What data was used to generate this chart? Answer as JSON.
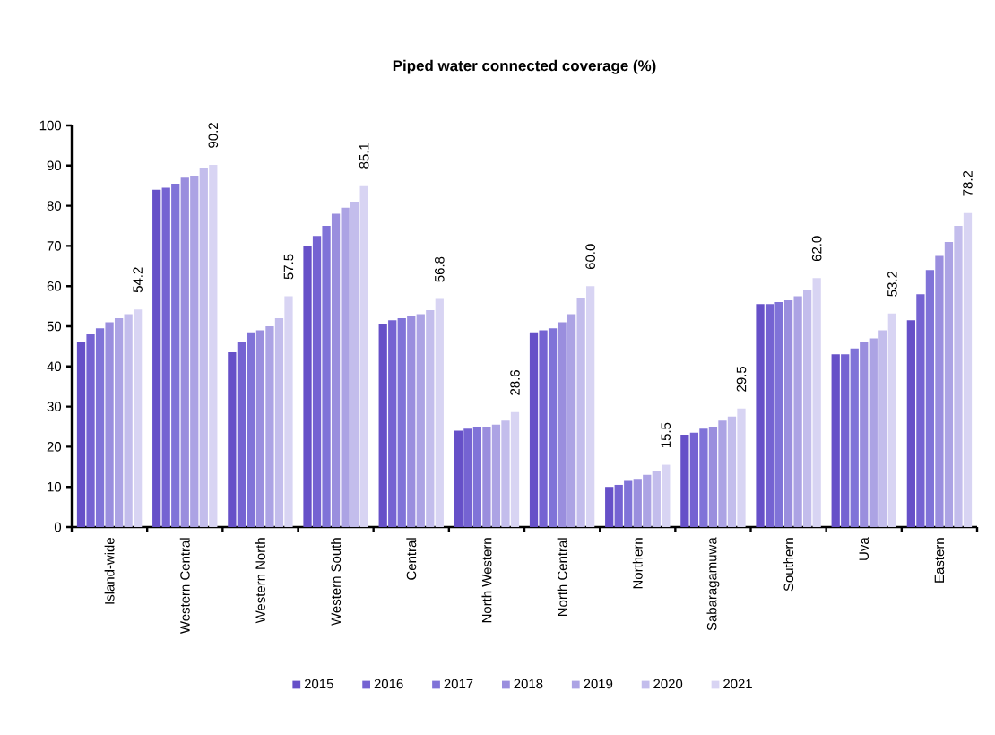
{
  "chart_data": {
    "type": "bar",
    "title": "Piped water connected coverage (%)",
    "categories": [
      "Island-wide",
      "Western Central",
      "Western  North",
      "Western  South",
      "Central",
      "North Western",
      "North Central",
      "Northern",
      "Sabaragamuwa",
      "Southern",
      "Uva",
      "Eastern"
    ],
    "series": [
      {
        "name": "2015",
        "color": "#6650c8",
        "values": [
          46,
          84,
          43.5,
          70,
          50.5,
          24,
          48.5,
          10,
          23,
          55.5,
          43,
          51.5
        ]
      },
      {
        "name": "2016",
        "color": "#7563d2",
        "values": [
          48,
          84.5,
          46,
          72.5,
          51.5,
          24.5,
          49,
          10.5,
          23.5,
          55.5,
          43,
          58
        ]
      },
      {
        "name": "2017",
        "color": "#8073d8",
        "values": [
          49.5,
          85.5,
          48.5,
          75,
          52,
          25,
          49.5,
          11.5,
          24.5,
          56,
          44.5,
          64
        ]
      },
      {
        "name": "2018",
        "color": "#9a8ede",
        "values": [
          51,
          87,
          49,
          78,
          52.5,
          25,
          51,
          12,
          25,
          56.5,
          46,
          67.5
        ]
      },
      {
        "name": "2019",
        "color": "#aca3e4",
        "values": [
          52,
          87.5,
          50,
          79.5,
          53,
          25.5,
          53,
          13,
          26.5,
          57.5,
          47,
          71
        ]
      },
      {
        "name": "2020",
        "color": "#c3bdec",
        "values": [
          53,
          89.5,
          52,
          81,
          54,
          26.5,
          57,
          14,
          27.5,
          59,
          49,
          75
        ]
      },
      {
        "name": "2021",
        "color": "#d8d4f3",
        "values": [
          54.2,
          90.2,
          57.5,
          85.1,
          56.8,
          28.6,
          60.0,
          15.5,
          29.5,
          62.0,
          53.2,
          78.2
        ],
        "value_labels": [
          "54.2",
          "90.2",
          "57.5",
          "85.1",
          "56.8",
          "28.6",
          "60.0",
          "15.5",
          "29.5",
          "62.0",
          "53.2",
          "78.2"
        ]
      }
    ],
    "ylim": [
      0,
      100
    ],
    "yticks": [
      0,
      10,
      20,
      30,
      40,
      50,
      60,
      70,
      80,
      90,
      100
    ],
    "legend": "bottom"
  }
}
